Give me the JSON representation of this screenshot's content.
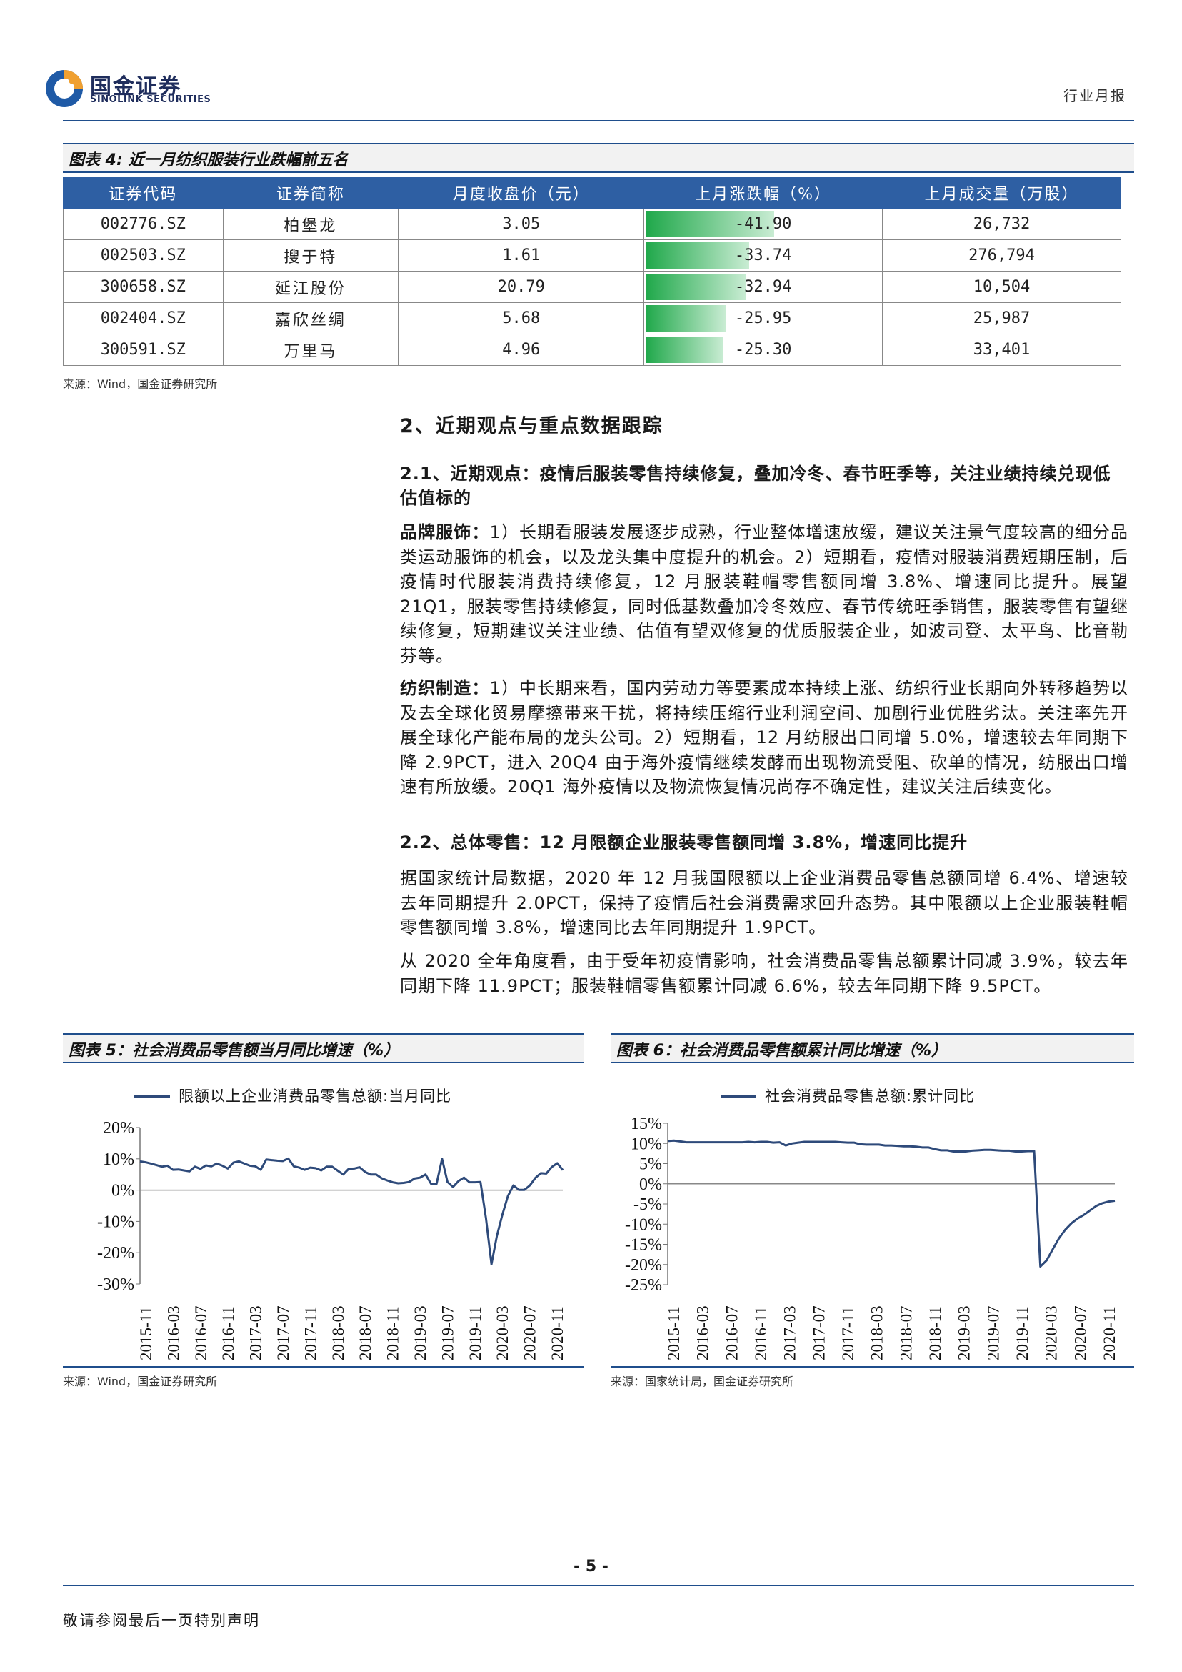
{
  "header": {
    "logo_cn": "国金证券",
    "logo_en": "SINOLINK SECURITIES",
    "doc_type": "行业月报"
  },
  "table4": {
    "caption": "图表 4: 近一月纺织服装行业跌幅前五名",
    "columns": [
      "证券代码",
      "证券简称",
      "月度收盘价（元）",
      "上月涨跌幅（%）",
      "上月成交量（万股）"
    ],
    "rows": [
      {
        "code": "002776.SZ",
        "name": "柏堡龙",
        "close": "3.05",
        "change": "-41.90",
        "change_value": -41.9,
        "volume": "26,732"
      },
      {
        "code": "002503.SZ",
        "name": "搜于特",
        "close": "1.61",
        "change": "-33.74",
        "change_value": -33.74,
        "volume": "276,794"
      },
      {
        "code": "300658.SZ",
        "name": "延江股份",
        "close": "20.79",
        "change": "-32.94",
        "change_value": -32.94,
        "volume": "10,504"
      },
      {
        "code": "002404.SZ",
        "name": "嘉欣丝绸",
        "close": "5.68",
        "change": "-25.95",
        "change_value": -25.95,
        "volume": "25,987"
      },
      {
        "code": "300591.SZ",
        "name": "万里马",
        "close": "4.96",
        "change": "-25.30",
        "change_value": -25.3,
        "volume": "33,401"
      }
    ],
    "source": "来源：Wind，国金证券研究所"
  },
  "section2": {
    "title": "2、近期观点与重点数据跟踪",
    "sub1_title": "2.1、近期观点：疫情后服装零售持续修复，叠加冷冬、春节旺季等，关注业绩持续兑现低估值标的",
    "brand_label": "品牌服饰：",
    "brand_text": "1）长期看服装发展逐步成熟，行业整体增速放缓，建议关注景气度较高的细分品类运动服饰的机会，以及龙头集中度提升的机会。2）短期看，疫情对服装消费短期压制，后疫情时代服装消费持续修复，12 月服装鞋帽零售额同增 3.8%、增速同比提升。展望 21Q1，服装零售持续修复，同时低基数叠加冷冬效应、春节传统旺季销售，服装零售有望继续修复，短期建议关注业绩、估值有望双修复的优质服装企业，如波司登、太平鸟、比音勒芬等。",
    "textile_label": "纺织制造：",
    "textile_text": "1）中长期来看，国内劳动力等要素成本持续上涨、纺织行业长期向外转移趋势以及去全球化贸易摩擦带来干扰，将持续压缩行业利润空间、加剧行业优胜劣汰。关注率先开展全球化产能布局的龙头公司。2）短期看，12 月纺服出口同增 5.0%，增速较去年同期下降 2.9PCT，进入 20Q4 由于海外疫情继续发酵而出现物流受阻、砍单的情况，纺服出口增速有所放缓。20Q1 海外疫情以及物流恢复情况尚存不确定性，建议关注后续变化。",
    "sub2_title": "2.2、总体零售：12 月限额企业服装零售额同增 3.8%，增速同比提升",
    "retail_p1": "据国家统计局数据，2020 年 12 月我国限额以上企业消费品零售总额同增 6.4%、增速较去年同期提升 2.0PCT，保持了疫情后社会消费需求回升态势。其中限额以上企业服装鞋帽零售额同增 3.8%，增速同比去年同期提升 1.9PCT。",
    "retail_p2": "从 2020 全年角度看，由于受年初疫情影响，社会消费品零售总额累计同减 3.9%，较去年同期下降 11.9PCT；服装鞋帽零售额累计同减 6.6%，较去年同期下降 9.5PCT。"
  },
  "fig5": {
    "caption": "图表 5：社会消费品零售额当月同比增速（%）",
    "source": "来源：Wind，国金证券研究所"
  },
  "fig6": {
    "caption": "图表 6：社会消费品零售额累计同比增速（%）",
    "source": "来源：国家统计局，国金证券研究所"
  },
  "chart_data": [
    {
      "type": "line",
      "series_name": "限额以上企业消费品零售总额:当月同比",
      "ylim": [
        -30,
        20
      ],
      "yticks": [
        "20%",
        "10%",
        "0%",
        "-10%",
        "-20%",
        "-30%"
      ],
      "x_ticks": [
        "2015-11",
        "2016-03",
        "2016-07",
        "2016-11",
        "2017-03",
        "2017-07",
        "2017-11",
        "2018-03",
        "2018-07",
        "2018-11",
        "2019-03",
        "2019-07",
        "2019-11",
        "2020-03",
        "2020-07",
        "2020-11"
      ],
      "values": [
        9.2,
        8.9,
        8.5,
        8.0,
        7.5,
        7.8,
        6.5,
        6.6,
        6.3,
        6.0,
        7.5,
        6.8,
        7.9,
        7.6,
        8.5,
        7.8,
        6.9,
        8.8,
        9.2,
        8.5,
        7.8,
        7.6,
        6.5,
        9.8,
        9.6,
        9.4,
        9.3,
        10.1,
        7.6,
        7.2,
        6.5,
        7.2,
        7.0,
        6.3,
        7.5,
        7.5,
        6.2,
        5.0,
        6.8,
        6.9,
        7.3,
        5.8,
        5.0,
        5.0,
        3.8,
        3.1,
        2.5,
        2.2,
        2.3,
        2.6,
        3.7,
        4.0,
        5.0,
        2.0,
        2.0,
        10.0,
        2.6,
        1.0,
        2.9,
        4.0,
        2.5,
        2.5,
        2.6,
        -9.0,
        -23.7,
        -14.6,
        -7.8,
        -1.9,
        1.5,
        0.1,
        0.1,
        1.5,
        3.9,
        5.4,
        5.3,
        7.4,
        8.6,
        6.4
      ]
    },
    {
      "type": "line",
      "series_name": "社会消费品零售总额:累计同比",
      "ylim": [
        -25,
        15
      ],
      "yticks": [
        "15%",
        "10%",
        "5%",
        "0%",
        "-5%",
        "-10%",
        "-15%",
        "-20%",
        "-25%"
      ],
      "x_ticks": [
        "2015-11",
        "2016-03",
        "2016-07",
        "2016-11",
        "2017-03",
        "2017-07",
        "2017-11",
        "2018-03",
        "2018-07",
        "2018-11",
        "2019-03",
        "2019-07",
        "2019-11",
        "2020-03",
        "2020-07",
        "2020-11"
      ],
      "values": [
        10.6,
        10.7,
        10.5,
        10.3,
        10.3,
        10.3,
        10.3,
        10.3,
        10.3,
        10.3,
        10.3,
        10.3,
        10.3,
        10.4,
        10.3,
        10.4,
        10.4,
        10.2,
        10.3,
        9.5,
        10.0,
        10.2,
        10.4,
        10.4,
        10.4,
        10.4,
        10.4,
        10.4,
        10.3,
        10.2,
        10.2,
        9.8,
        9.7,
        9.7,
        9.7,
        9.5,
        9.5,
        9.4,
        9.3,
        9.3,
        9.2,
        9.0,
        9.0,
        8.6,
        8.3,
        8.3,
        8.0,
        8.0,
        8.0,
        8.2,
        8.3,
        8.4,
        8.4,
        8.3,
        8.2,
        8.2,
        8.0,
        8.0,
        8.1,
        8.1,
        -20.5,
        -19.0,
        -16.2,
        -13.5,
        -11.4,
        -9.8,
        -8.6,
        -7.7,
        -6.6,
        -5.5,
        -4.8,
        -4.4,
        -4.2
      ]
    }
  ],
  "footer": {
    "page": "- 5 -",
    "note": "敬请参阅最后一页特别声明"
  }
}
